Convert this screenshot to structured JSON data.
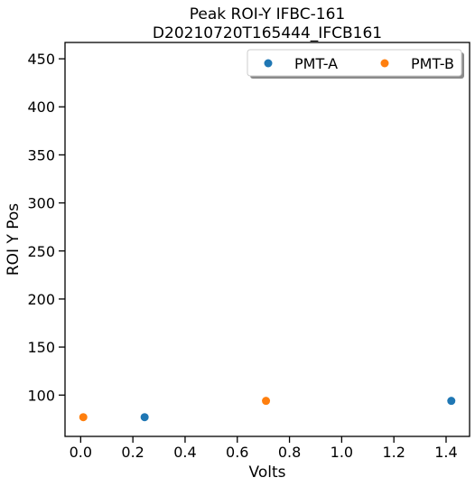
{
  "chart_data": {
    "type": "scatter",
    "title": "Peak ROI-Y IFBC-161",
    "subtitle": "D20210720T165444_IFCB161",
    "xlabel": "Volts",
    "ylabel": "ROI Y Pos",
    "xlim": [
      -0.06,
      1.49
    ],
    "ylim": [
      57,
      467
    ],
    "xticks": [
      "0.0",
      "0.2",
      "0.4",
      "0.6",
      "0.8",
      "1.0",
      "1.2",
      "1.4"
    ],
    "yticks": [
      "100",
      "150",
      "200",
      "250",
      "300",
      "350",
      "400",
      "450"
    ],
    "grid": false,
    "legend_position": "top-right",
    "series": [
      {
        "name": "PMT-A",
        "color": "#1f77b4",
        "points": [
          [
            0.245,
            77
          ],
          [
            1.42,
            94
          ]
        ]
      },
      {
        "name": "PMT-B",
        "color": "#ff7f0e",
        "points": [
          [
            0.01,
            77
          ],
          [
            0.71,
            94
          ]
        ]
      }
    ]
  }
}
